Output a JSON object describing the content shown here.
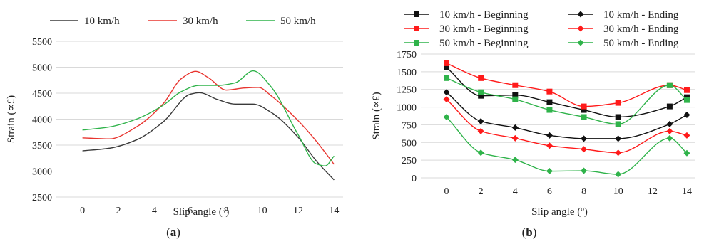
{
  "chart_data": [
    {
      "panel": "(a)",
      "panel_letter": "a",
      "type": "line",
      "xlabel": "Slip angle (º)",
      "ylabel": "Strain (∝£)",
      "xlim": [
        -0.5,
        14.5
      ],
      "ylim": [
        2500,
        5500
      ],
      "xticks": [
        0,
        2,
        4,
        6,
        8,
        10,
        12,
        14
      ],
      "yticks": [
        2500,
        3000,
        3500,
        4000,
        4500,
        5000,
        5500
      ],
      "grid": "horizontal",
      "legend_position": "top",
      "series": [
        {
          "name": "10 km/h",
          "color": "#3a3a3a",
          "x": [
            0,
            1.5,
            3,
            4.5,
            6,
            6.5,
            7.5,
            8.5,
            9.5,
            10.5,
            12,
            13,
            14
          ],
          "y": [
            3390,
            3440,
            3600,
            3950,
            4480,
            4510,
            4380,
            4290,
            4290,
            4130,
            3650,
            3200,
            2830
          ]
        },
        {
          "name": "30 km/h",
          "color": "#e8352f",
          "x": [
            0,
            1.5,
            3,
            4.5,
            5.5,
            6.3,
            7,
            8,
            9,
            9.8,
            10.5,
            12,
            13,
            14
          ],
          "y": [
            3640,
            3620,
            3850,
            4300,
            4780,
            4920,
            4800,
            4560,
            4600,
            4610,
            4450,
            3970,
            3580,
            3130
          ]
        },
        {
          "name": "50 km/h",
          "color": "#2fb34a",
          "x": [
            0,
            1.5,
            3,
            4.5,
            5.5,
            6.5,
            7.5,
            8.5,
            9.5,
            10.5,
            12,
            13,
            13.5,
            14
          ],
          "y": [
            3790,
            3850,
            4000,
            4270,
            4530,
            4650,
            4650,
            4700,
            4930,
            4620,
            3700,
            3140,
            3100,
            3290
          ]
        }
      ]
    },
    {
      "panel": "(b)",
      "panel_letter": "b",
      "type": "line",
      "xlabel": "Slip angle (º)",
      "ylabel": "Strain (∝£)",
      "xlim": [
        -0.5,
        14.5
      ],
      "ylim": [
        0,
        1750
      ],
      "xticks": [
        0,
        2,
        4,
        6,
        8,
        10,
        12,
        14
      ],
      "yticks": [
        0,
        250,
        500,
        750,
        1000,
        1250,
        1500,
        1750
      ],
      "grid": "horizontal",
      "legend_position": "top",
      "x": [
        0,
        2,
        4,
        6,
        8,
        10,
        13,
        14
      ],
      "series": [
        {
          "name": "10 km/h - Beginning",
          "color": "#111111",
          "marker": "square",
          "y": [
            1560,
            1160,
            1170,
            1070,
            960,
            860,
            1010,
            1140
          ]
        },
        {
          "name": "10 km/h - Ending",
          "color": "#111111",
          "marker": "diamond",
          "y": [
            1210,
            800,
            710,
            600,
            555,
            555,
            760,
            890
          ]
        },
        {
          "name": "30 km/h - Beginning",
          "color": "#ff1a1a",
          "marker": "square",
          "y": [
            1620,
            1410,
            1310,
            1220,
            1010,
            1060,
            1310,
            1240
          ]
        },
        {
          "name": "30 km/h - Ending",
          "color": "#ff1a1a",
          "marker": "diamond",
          "y": [
            1110,
            660,
            560,
            455,
            405,
            355,
            660,
            600
          ]
        },
        {
          "name": "50 km/h - Beginning",
          "color": "#2fb34a",
          "marker": "square",
          "y": [
            1410,
            1210,
            1110,
            960,
            860,
            760,
            1310,
            1100
          ]
        },
        {
          "name": "50 km/h - Ending",
          "color": "#2fb34a",
          "marker": "diamond",
          "y": [
            860,
            355,
            255,
            95,
            100,
            50,
            560,
            350
          ]
        }
      ]
    }
  ]
}
